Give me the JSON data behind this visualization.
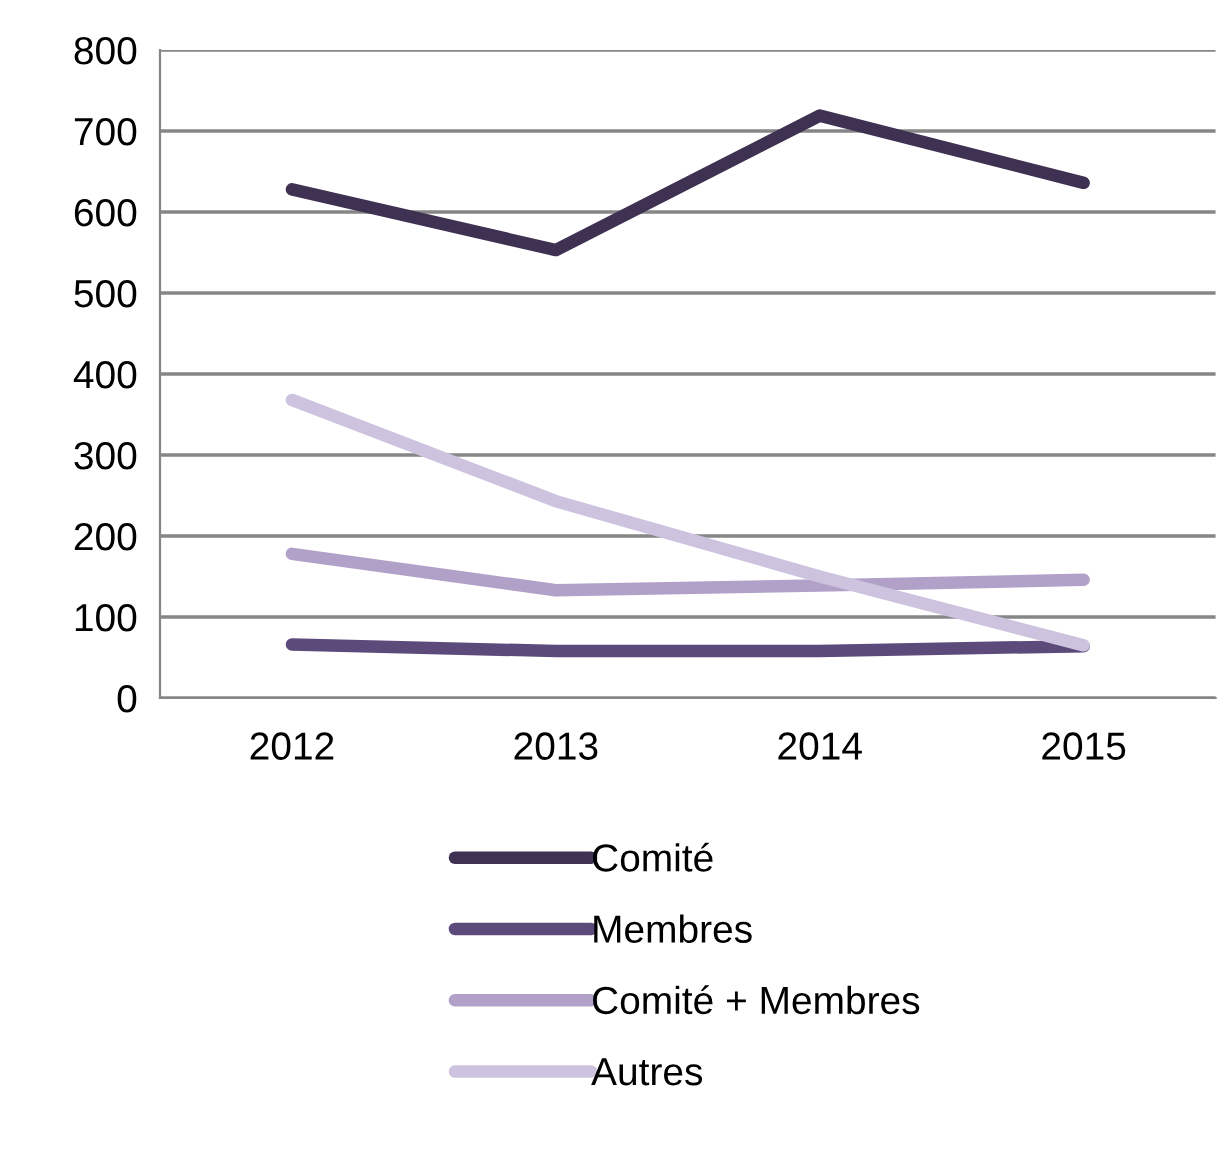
{
  "chart_data": {
    "type": "line",
    "categories": [
      "2012",
      "2013",
      "2014",
      "2015"
    ],
    "series": [
      {
        "name": "Comité",
        "color": "#3f3152",
        "values": [
          628,
          553,
          719,
          636
        ]
      },
      {
        "name": "Membres",
        "color": "#5c4a7a",
        "values": [
          66,
          58,
          58,
          64
        ]
      },
      {
        "name": "Comité + Membres",
        "color": "#b1a1c9",
        "values": [
          178,
          133,
          139,
          146
        ]
      },
      {
        "name": "Autres",
        "color": "#cdc3de",
        "values": [
          368,
          243,
          150,
          65
        ]
      }
    ],
    "ylim": [
      0,
      800
    ],
    "yticks": [
      0,
      100,
      200,
      300,
      400,
      500,
      600,
      700,
      800
    ],
    "grid": "y",
    "legend": "bottom",
    "marker": "none",
    "line_style": "solid"
  }
}
